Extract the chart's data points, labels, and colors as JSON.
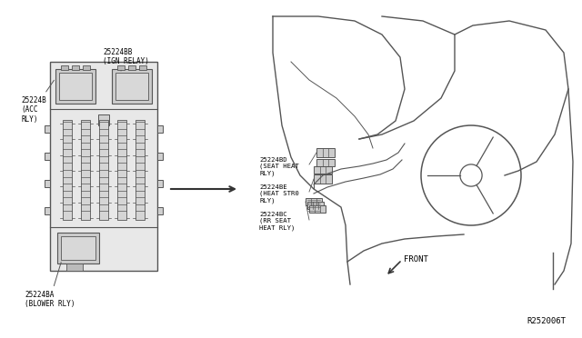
{
  "bg_color": "#ffffff",
  "line_color": "#555555",
  "dark_color": "#333333",
  "text_color": "#000000",
  "part_number": "R252006T",
  "acc_label": "25224B\n(ACC\nRLY)",
  "ign_label": "25224BB\n(IGN RELAY)",
  "blower_label": "25224BA\n(BLOWER RLY)",
  "seat_heat_label": "25224BD\n(SEAT HEAT\nRLY)",
  "heat_str_label": "25224BE\n(HEAT STR0\nRLY)",
  "rr_seat_label": "25224BC\n(RR SEAT\nHEAT RLY)",
  "front_label": "FRONT"
}
